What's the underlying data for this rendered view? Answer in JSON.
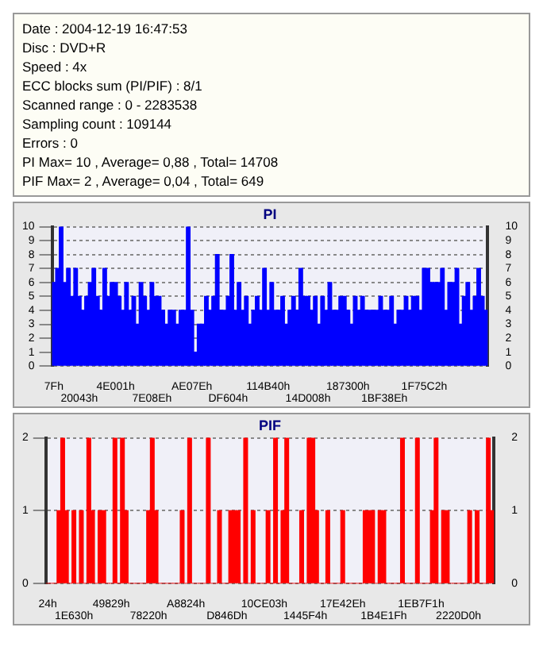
{
  "chart_data": [
    {
      "type": "other",
      "annotations": [
        "Date : 2004-12-19 16:47:53",
        "Disc : DVD+R",
        "Speed : 4x",
        "ECC blocks sum (PI/PIF) : 8/1",
        "Scanned range : 0 - 2283538",
        "Sampling count : 109144",
        "Errors : 0",
        "PI Max= 10 , Average= 0,88 , Total= 14708",
        "PIF Max= 2 , Average= 0,04 , Total= 649"
      ]
    },
    {
      "type": "bar",
      "title": "PI",
      "color": "#0000ff",
      "grid": "y",
      "ylim": [
        0,
        10
      ],
      "yticks": [
        0,
        1,
        2,
        3,
        4,
        5,
        6,
        7,
        8,
        9,
        10
      ],
      "y2lim": [
        0,
        10
      ],
      "y2ticks": [
        0,
        1,
        2,
        3,
        4,
        5,
        6,
        7,
        8,
        9,
        10
      ],
      "categories": [
        "7Fh",
        null,
        null,
        null,
        null,
        null,
        null,
        "20043h",
        null,
        null,
        null,
        null,
        null,
        null,
        null,
        null,
        null,
        "4E001h",
        null,
        null,
        null,
        null,
        null,
        null,
        null,
        null,
        null,
        "7E08Eh",
        null,
        null,
        null,
        null,
        null,
        null,
        null,
        null,
        null,
        null,
        "AE07Eh",
        null,
        null,
        null,
        null,
        null,
        null,
        null,
        null,
        null,
        "DF604h",
        null,
        null,
        null,
        null,
        null,
        null,
        null,
        null,
        null,
        null,
        "114B40h",
        null,
        null,
        null,
        null,
        null,
        null,
        null,
        null,
        null,
        null,
        "14D008h",
        null,
        null,
        null,
        null,
        null,
        null,
        null,
        null,
        null,
        null,
        "187300h",
        null,
        null,
        null,
        null,
        null,
        null,
        null,
        null,
        null,
        "1BF38Eh",
        null,
        null,
        null,
        null,
        null,
        null,
        null,
        null,
        null,
        null,
        "1F75C2h",
        null,
        null,
        null,
        null,
        null,
        null,
        null,
        null,
        null,
        null,
        null,
        null,
        null,
        null,
        null,
        null,
        null
      ],
      "values": [
        6,
        7,
        10,
        6,
        7,
        5,
        7,
        5,
        4,
        5,
        6,
        7,
        5,
        4,
        7,
        5,
        6,
        6,
        5,
        4,
        6,
        4,
        5,
        3,
        6,
        5,
        4,
        6,
        5,
        5,
        4,
        3,
        4,
        4,
        3,
        4,
        4,
        10,
        4,
        1,
        3,
        3,
        5,
        4,
        5,
        8,
        4,
        4,
        5,
        8,
        4,
        6,
        4,
        5,
        3,
        4,
        5,
        4,
        7,
        4,
        6,
        4,
        4,
        5,
        3,
        4,
        5,
        4,
        7,
        5,
        5,
        4,
        5,
        3,
        5,
        4,
        6,
        4,
        4,
        5,
        5,
        4,
        3,
        5,
        4,
        5,
        4,
        4,
        4,
        4,
        5,
        4,
        4,
        5,
        3,
        4,
        4,
        5,
        4,
        5,
        5,
        4,
        7,
        7,
        6,
        6,
        6,
        7,
        4,
        6,
        6,
        7,
        3,
        5,
        6,
        4,
        5,
        7,
        5,
        4
      ]
    },
    {
      "type": "bar",
      "title": "PIF",
      "color": "#ff0000",
      "grid": "y",
      "ylim": [
        0,
        2
      ],
      "yticks": [
        0,
        1,
        2
      ],
      "y2lim": [
        0,
        2
      ],
      "y2ticks": [
        0,
        1,
        2
      ],
      "categories": [
        "24h",
        null,
        null,
        null,
        null,
        null,
        null,
        "1E630h",
        null,
        null,
        null,
        null,
        null,
        null,
        null,
        null,
        null,
        "49829h",
        null,
        null,
        null,
        null,
        null,
        null,
        null,
        null,
        null,
        "78220h",
        null,
        null,
        null,
        null,
        null,
        null,
        null,
        null,
        null,
        "A8824h",
        null,
        null,
        null,
        null,
        null,
        null,
        null,
        null,
        null,
        null,
        "D846Dh",
        null,
        null,
        null,
        null,
        null,
        null,
        null,
        null,
        null,
        "10CE03h",
        null,
        null,
        null,
        null,
        null,
        null,
        null,
        null,
        null,
        null,
        "1445F4h",
        null,
        null,
        null,
        null,
        null,
        null,
        null,
        null,
        null,
        "17E42Eh",
        null,
        null,
        null,
        null,
        null,
        null,
        null,
        null,
        null,
        null,
        "1B4E1Fh",
        null,
        null,
        null,
        null,
        null,
        null,
        null,
        null,
        null,
        "1EB7F1h",
        null,
        null,
        null,
        null,
        null,
        null,
        null,
        null,
        null,
        "2220D0h",
        null,
        null,
        null,
        null,
        null,
        null,
        null,
        null,
        null
      ],
      "values": [
        0,
        0,
        0,
        1,
        2,
        1,
        0,
        1,
        0,
        1,
        0,
        2,
        1,
        0,
        1,
        1,
        0,
        0,
        2,
        0,
        2,
        1,
        0,
        0,
        0,
        0,
        0,
        1,
        2,
        1,
        0,
        0,
        0,
        0,
        0,
        0,
        1,
        0,
        2,
        0,
        0,
        0,
        0,
        2,
        0,
        0,
        1,
        0,
        0,
        1,
        1,
        1,
        0,
        2,
        0,
        1,
        0,
        0,
        0,
        1,
        0,
        2,
        0,
        1,
        2,
        0,
        0,
        0,
        1,
        0,
        2,
        2,
        1,
        0,
        0,
        1,
        0,
        0,
        0,
        1,
        0,
        0,
        0,
        0,
        0,
        1,
        1,
        1,
        0,
        1,
        1,
        0,
        0,
        0,
        0,
        2,
        0,
        0,
        0,
        2,
        0,
        0,
        0,
        1,
        2,
        0,
        1,
        1,
        0,
        0,
        0,
        0,
        0,
        1,
        0,
        1,
        0,
        0,
        2,
        1
      ]
    }
  ]
}
